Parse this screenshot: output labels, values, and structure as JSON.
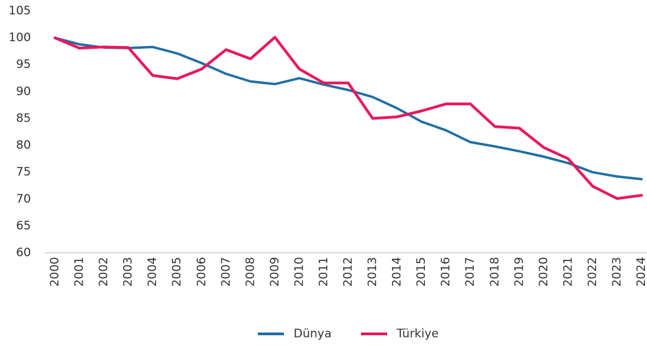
{
  "chart_data": {
    "type": "line",
    "categories": [
      "2000",
      "2001",
      "2002",
      "2003",
      "2004",
      "2005",
      "2006",
      "2007",
      "2008",
      "2009",
      "2010",
      "2011",
      "2012",
      "2013",
      "2014",
      "2015",
      "2016",
      "2017",
      "2018",
      "2019",
      "2020",
      "2021",
      "2022",
      "2023",
      "2024"
    ],
    "series": [
      {
        "name": "Dünya",
        "color": "#1f6fa3",
        "values": [
          100,
          98.8,
          98.2,
          98.1,
          98.3,
          97.1,
          95.3,
          93.3,
          91.9,
          91.4,
          92.5,
          91.3,
          90.3,
          89.0,
          86.9,
          84.4,
          82.8,
          80.6,
          79.8,
          78.9,
          77.9,
          76.7,
          75.0,
          74.2,
          73.7
        ]
      },
      {
        "name": "Türkiye",
        "color": "#e8175d",
        "values": [
          100,
          98.1,
          98.3,
          98.2,
          93.0,
          92.4,
          94.2,
          97.8,
          96.1,
          100.1,
          94.2,
          91.6,
          91.6,
          85.0,
          85.3,
          86.4,
          87.7,
          87.7,
          83.5,
          83.2,
          79.6,
          77.5,
          72.4,
          70.1,
          70.7
        ]
      }
    ],
    "ylim": [
      60,
      105
    ],
    "yticks": [
      60,
      65,
      70,
      75,
      80,
      85,
      90,
      95,
      100,
      105
    ],
    "grid": false,
    "legend": "bottom"
  }
}
